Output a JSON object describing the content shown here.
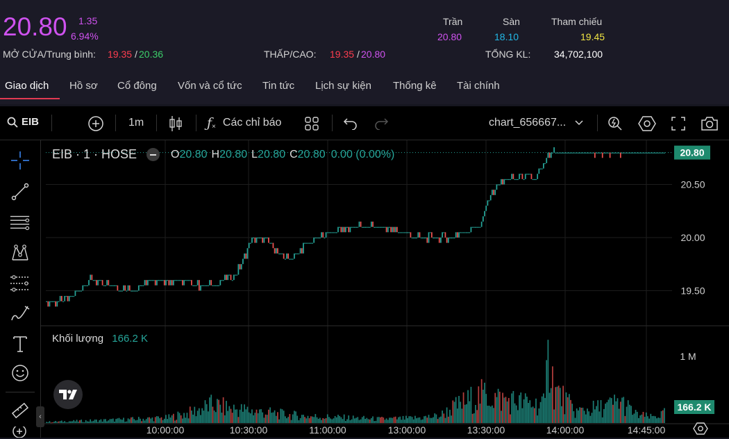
{
  "quote": {
    "price": "20.80",
    "change": "1.35",
    "change_pct": "6.94%",
    "open_avg_label": "MỞ CỬA/Trung bình:",
    "open": "19.35",
    "avg": "20.36",
    "low_high_label": "THẤP/CAO:",
    "low": "19.35",
    "high": "20.80",
    "ceiling_label": "Trần",
    "ceiling": "20.80",
    "floor_label": "Sàn",
    "floor": "18.10",
    "ref_label": "Tham chiếu",
    "ref": "19.45",
    "total_vol_label": "TỔNG KL:",
    "total_vol": "34,702,100",
    "slash": "/"
  },
  "tabs": [
    "Giao dịch",
    "Hồ sơ",
    "Cổ đông",
    "Vốn và cổ tức",
    "Tin tức",
    "Lịch sự kiện",
    "Thống kê",
    "Tài chính"
  ],
  "toolbar": {
    "symbol": "EIB",
    "interval": "1m",
    "indicators_label": "Các chỉ báo",
    "chart_name": "chart_656667..."
  },
  "legend": {
    "title": "EIB · 1 · HOSE",
    "o_label": "O",
    "o": "20.80",
    "h_label": "H",
    "h": "20.80",
    "l_label": "L",
    "l": "20.80",
    "c_label": "C",
    "c": "20.80",
    "change": "0.00 (0.00%)",
    "vol_label": "Khối lượng",
    "vol": "166.2 K"
  },
  "colors": {
    "up": "#26a69a",
    "down": "#ef5350",
    "ceiling": "#cf52ef",
    "floor": "#22b8e6",
    "ref": "#f0e443",
    "green": "#3ccf6a",
    "red": "#ff3d4f"
  },
  "chart_data": {
    "type": "candlestick",
    "price_axis": {
      "ticks": [
        20.5,
        20.0,
        19.5
      ],
      "tick_labels": [
        "20.50",
        "20.00",
        "19.50"
      ],
      "current_label": "20.80",
      "range": [
        19.3,
        20.85
      ]
    },
    "volume_axis": {
      "ticks": [
        1000000
      ],
      "tick_labels": [
        "1 M"
      ],
      "current_label": "166.2 K",
      "range": [
        0,
        1450000
      ]
    },
    "time_labels": [
      "10:00:00",
      "10:30:00",
      "11:00:00",
      "13:00:00",
      "13:30:00",
      "14:00:00",
      "14:45:00"
    ],
    "price_path": [
      [
        0,
        19.38
      ],
      [
        10,
        19.4
      ],
      [
        18,
        19.45
      ],
      [
        22,
        19.52
      ],
      [
        28,
        19.6
      ],
      [
        34,
        19.58
      ],
      [
        38,
        19.55
      ],
      [
        46,
        19.55
      ],
      [
        52,
        19.5
      ],
      [
        60,
        19.55
      ],
      [
        68,
        19.6
      ],
      [
        80,
        19.6
      ],
      [
        90,
        19.58
      ],
      [
        100,
        19.55
      ],
      [
        110,
        19.55
      ],
      [
        118,
        19.6
      ],
      [
        124,
        19.65
      ],
      [
        128,
        19.72
      ],
      [
        132,
        19.85
      ],
      [
        136,
        19.98
      ],
      [
        140,
        20.0
      ],
      [
        148,
        19.95
      ],
      [
        154,
        19.85
      ],
      [
        160,
        19.8
      ],
      [
        166,
        19.85
      ],
      [
        172,
        19.95
      ],
      [
        180,
        20.0
      ],
      [
        188,
        20.05
      ],
      [
        196,
        20.08
      ],
      [
        206,
        20.1
      ],
      [
        216,
        20.1
      ],
      [
        226,
        20.08
      ],
      [
        236,
        20.05
      ],
      [
        246,
        20.0
      ],
      [
        256,
        20.0
      ],
      [
        266,
        20.0
      ],
      [
        276,
        20.05
      ],
      [
        282,
        20.1
      ],
      [
        286,
        20.1
      ],
      [
        290,
        20.25
      ],
      [
        294,
        20.4
      ],
      [
        298,
        20.5
      ],
      [
        306,
        20.55
      ],
      [
        314,
        20.58
      ],
      [
        322,
        20.55
      ],
      [
        328,
        20.65
      ],
      [
        332,
        20.78
      ],
      [
        336,
        20.8
      ],
      [
        410,
        20.8
      ]
    ],
    "volume_path": [
      [
        0,
        20000
      ],
      [
        40,
        50000
      ],
      [
        80,
        90000
      ],
      [
        95,
        180000
      ],
      [
        110,
        320000
      ],
      [
        120,
        260000
      ],
      [
        140,
        200000
      ],
      [
        160,
        140000
      ],
      [
        180,
        110000
      ],
      [
        200,
        90000
      ],
      [
        220,
        70000
      ],
      [
        240,
        80000
      ],
      [
        260,
        120000
      ],
      [
        270,
        280000
      ],
      [
        280,
        400000
      ],
      [
        290,
        500000
      ],
      [
        300,
        420000
      ],
      [
        310,
        380000
      ],
      [
        320,
        340000
      ],
      [
        330,
        320000
      ],
      [
        332,
        1250000
      ],
      [
        336,
        600000
      ],
      [
        350,
        200000
      ],
      [
        370,
        280000
      ],
      [
        380,
        380000
      ],
      [
        390,
        150000
      ],
      [
        400,
        100000
      ],
      [
        410,
        170000
      ]
    ]
  }
}
